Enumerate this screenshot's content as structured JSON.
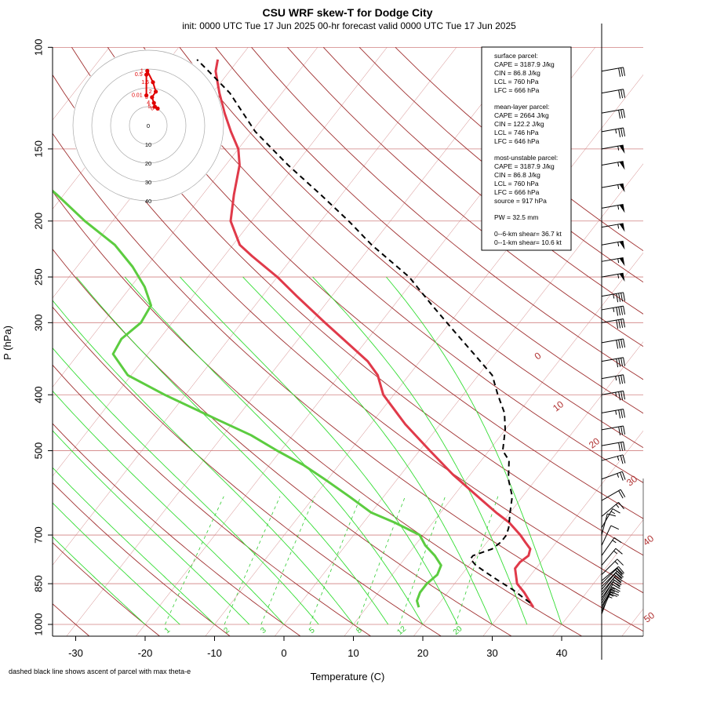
{
  "header": {
    "title": "CSU WRF skew-T for Dodge City",
    "subtitle": "init: 0000 UTC Tue 17 Jun 2025     00-hr forecast valid 0000 UTC Tue 17 Jun 2025"
  },
  "footnote": "dashed black line shows ascent of parcel with max theta-e",
  "colors": {
    "temperature": "#e03a4a",
    "dewpoint": "#5ccc40",
    "isotherm": "#d08080",
    "dry_adiabat": "#a03030",
    "moist_adiabat": "#33dd33",
    "mixing_ratio": "#33cc33",
    "parcel": "#000000",
    "hodograph": "#e00000"
  },
  "info_box": {
    "surface_parcel": {
      "heading": "surface parcel:",
      "lines": [
        "CAPE = 3187.9 J/kg",
        "CIN = 86.8 J/kg",
        "LCL = 760 hPa",
        "LFC = 666 hPa"
      ]
    },
    "mean_layer_parcel": {
      "heading": "mean-layer parcel:",
      "lines": [
        "CAPE = 2664 J/kg",
        "CIN = 122.2 J/kg",
        "LCL = 746 hPa",
        "LFC = 646 hPa"
      ]
    },
    "most_unstable_parcel": {
      "heading": "most-unstable parcel:",
      "lines": [
        "CAPE = 3187.9 J/kg",
        "CIN = 86.8 J/kg",
        "LCL = 760 hPa",
        "LFC = 666 hPa",
        "source = 917 hPa"
      ]
    },
    "pw": "PW =  32.5 mm",
    "shear": [
      "0--6-km shear= 36.7 kt",
      "0--1-km shear= 10.6 kt"
    ]
  },
  "hodograph": {
    "ring_labels": [
      "0",
      "10",
      "20",
      "30",
      "40"
    ],
    "height_labels": [
      "0.01",
      "0.5",
      "1",
      "1.5",
      "2",
      "3",
      "4",
      "5",
      "6"
    ]
  },
  "chart_data": {
    "type": "line",
    "title": "CSU WRF skew-T for Dodge City",
    "xlabel": "Temperature (C)",
    "ylabel": "P (hPa)",
    "xlim": [
      -33,
      52
    ],
    "ylim": [
      1000,
      100
    ],
    "x_ticks": [
      -30,
      -20,
      -10,
      0,
      10,
      20,
      30,
      40
    ],
    "p_ticks": [
      100,
      150,
      200,
      250,
      300,
      400,
      500,
      700,
      850,
      1000
    ],
    "isotherm_labels": [
      "-10",
      "0",
      "10",
      "20",
      "30",
      "40",
      "50"
    ],
    "mixing_ratio_labels": [
      "1",
      "2",
      "3",
      "5",
      "8",
      "12",
      "20"
    ],
    "mixing_ratio_values": [
      1,
      2,
      3,
      5,
      8,
      12,
      20
    ],
    "temperature": {
      "p": [
        934,
        880,
        850,
        800,
        780,
        760,
        740,
        720,
        700,
        666,
        640,
        600,
        550,
        500,
        450,
        400,
        370,
        350,
        330,
        300,
        270,
        250,
        230,
        220,
        200,
        180,
        160,
        150,
        140,
        130,
        120,
        110,
        105
      ],
      "t": [
        34.0,
        31.0,
        29.0,
        27.0,
        27.0,
        27.5,
        27.0,
        25.5,
        24.0,
        21.0,
        18.0,
        13.5,
        7.5,
        1.5,
        -5.0,
        -11.5,
        -14.5,
        -17.5,
        -21.5,
        -28.0,
        -35.0,
        -40.0,
        -46.0,
        -49.0,
        -53.0,
        -55.5,
        -58.0,
        -60.0,
        -63.0,
        -66.0,
        -69.0,
        -72.0,
        -73.0
      ]
    },
    "dewpoint": {
      "p": [
        934,
        910,
        880,
        850,
        820,
        790,
        760,
        730,
        700,
        666,
        640,
        600,
        560,
        530,
        500,
        470,
        440,
        400,
        370,
        340,
        320,
        300,
        280,
        260,
        240,
        220,
        200,
        180,
        170
      ],
      "td": [
        17.5,
        16.5,
        16.0,
        16.0,
        16.5,
        16.0,
        14.0,
        11.5,
        9.5,
        4.5,
        0.0,
        -5.0,
        -10.5,
        -15.0,
        -20.5,
        -26.0,
        -33.0,
        -43.0,
        -50.5,
        -55.0,
        -55.5,
        -54.5,
        -55.0,
        -58.0,
        -62.0,
        -67.0,
        -74.0,
        -81.0,
        -85.0
      ]
    },
    "parcel_max_theta_e": {
      "p": [
        917,
        870,
        840,
        810,
        790,
        770,
        760,
        740,
        720,
        700,
        680,
        666,
        640,
        600,
        560,
        520,
        500,
        460,
        430,
        400,
        370,
        340,
        310,
        280,
        250,
        220,
        200,
        180,
        160,
        140,
        120,
        110,
        105
      ],
      "t": [
        33.0,
        29.0,
        26.0,
        23.0,
        21.0,
        19.5,
        19.5,
        21.5,
        22.0,
        22.0,
        21.5,
        21.0,
        20.0,
        18.5,
        16.0,
        14.0,
        12.0,
        10.0,
        8.0,
        5.0,
        2.0,
        -3.0,
        -8.5,
        -14.5,
        -21.0,
        -30.0,
        -36.0,
        -43.0,
        -51.0,
        -59.5,
        -67.5,
        -73.0,
        -76.0
      ]
    },
    "wind_barbs_kt": {
      "p": [
        960,
        950,
        940,
        930,
        920,
        910,
        900,
        890,
        880,
        870,
        860,
        850,
        840,
        820,
        790,
        760,
        730,
        700,
        680,
        650,
        610,
        560,
        520,
        490,
        460,
        430,
        400,
        375,
        350,
        325,
        300,
        285,
        270,
        250,
        235,
        220,
        205,
        190,
        175,
        160,
        150,
        140,
        130,
        120,
        110
      ],
      "speed": [
        15,
        15,
        15,
        15,
        15,
        20,
        20,
        20,
        20,
        20,
        20,
        20,
        20,
        15,
        15,
        15,
        10,
        10,
        15,
        15,
        20,
        25,
        25,
        30,
        30,
        35,
        35,
        35,
        40,
        40,
        40,
        45,
        45,
        55,
        55,
        55,
        55,
        55,
        55,
        55,
        55,
        35,
        30,
        30,
        30
      ],
      "direction": [
        200,
        205,
        205,
        210,
        210,
        210,
        215,
        215,
        220,
        220,
        225,
        225,
        230,
        225,
        220,
        215,
        205,
        195,
        210,
        230,
        240,
        250,
        255,
        260,
        260,
        260,
        260,
        260,
        260,
        260,
        260,
        260,
        260,
        260,
        260,
        260,
        260,
        260,
        260,
        260,
        260,
        260,
        260,
        260,
        260
      ]
    },
    "hodograph_points": {
      "labels": [
        "0.01",
        "0.5",
        "1",
        "1.5",
        "2",
        "3",
        "4",
        "5",
        "6"
      ],
      "u_kt": [
        -1,
        -1,
        -0.5,
        2.5,
        4,
        2,
        3,
        3.5,
        5
      ],
      "v_kt": [
        16,
        27,
        29,
        23,
        18,
        15,
        12,
        10,
        9
      ]
    }
  }
}
